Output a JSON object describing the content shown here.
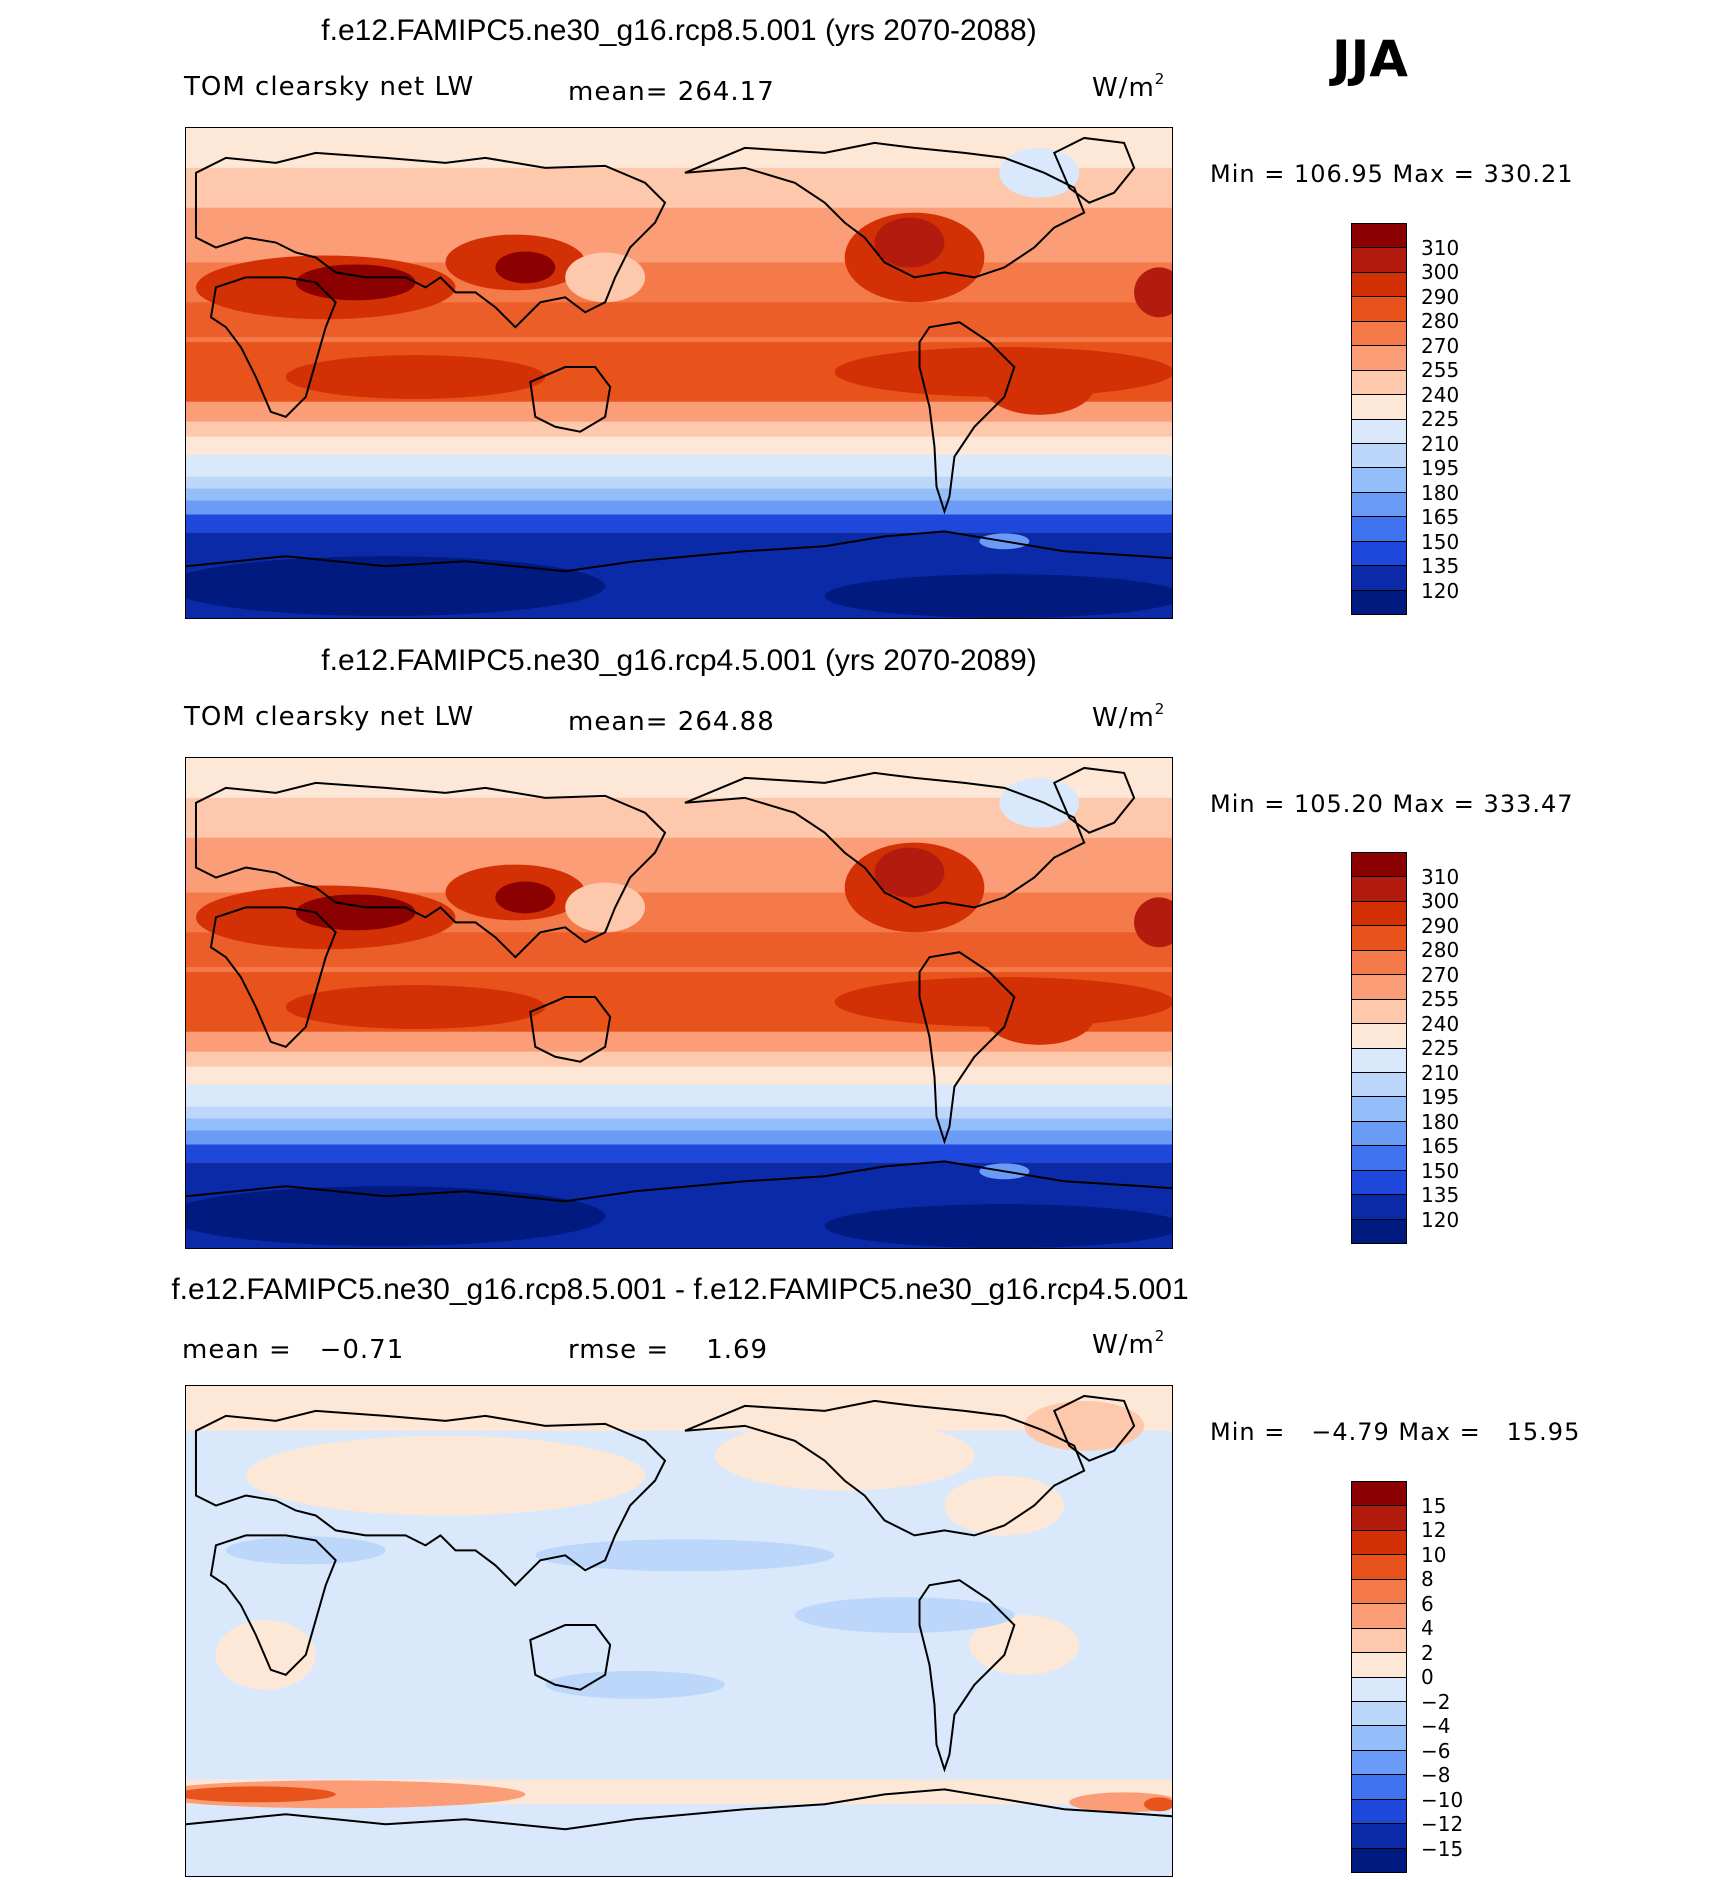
{
  "season": "JJA",
  "units_base": "W/m",
  "units_exp": "2",
  "panels": [
    {
      "title": "f.e12.FAMIPC5.ne30_g16.rcp8.5.001 (yrs 2070-2088)",
      "left_label": "TOM clearsky net LW",
      "stat_label": "mean= 264.17",
      "minmax": "Min = 106.95 Max = 330.21",
      "levels": [
        "310",
        "300",
        "290",
        "280",
        "270",
        "255",
        "240",
        "225",
        "210",
        "195",
        "180",
        "165",
        "150",
        "135",
        "120"
      ],
      "colors": [
        "#8b0000",
        "#b21b0e",
        "#d43006",
        "#e8521b",
        "#f57a4a",
        "#fb9d77",
        "#fdc8ac",
        "#fde8d8",
        "#d9e9fb",
        "#bdd7fb",
        "#93befa",
        "#6a9cf7",
        "#3f73f0",
        "#1e48dc",
        "#0b2aa8",
        "#001a80"
      ]
    },
    {
      "title": "f.e12.FAMIPC5.ne30_g16.rcp4.5.001 (yrs 2070-2089)",
      "left_label": "TOM clearsky net LW",
      "stat_label": "mean= 264.88",
      "minmax": "Min = 105.20 Max = 333.47",
      "levels": [
        "310",
        "300",
        "290",
        "280",
        "270",
        "255",
        "240",
        "225",
        "210",
        "195",
        "180",
        "165",
        "150",
        "135",
        "120"
      ],
      "colors": [
        "#8b0000",
        "#b21b0e",
        "#d43006",
        "#e8521b",
        "#f57a4a",
        "#fb9d77",
        "#fdc8ac",
        "#fde8d8",
        "#d9e9fb",
        "#bdd7fb",
        "#93befa",
        "#6a9cf7",
        "#3f73f0",
        "#1e48dc",
        "#0b2aa8",
        "#001a80"
      ]
    },
    {
      "title": "f.e12.FAMIPC5.ne30_g16.rcp8.5.001 - f.e12.FAMIPC5.ne30_g16.rcp4.5.001",
      "left_label": "mean =   −0.71",
      "stat_label": "rmse =    1.69",
      "minmax": "Min =   −4.79 Max =   15.95",
      "levels": [
        "15",
        "12",
        "10",
        "8",
        "6",
        "4",
        "2",
        "0",
        "−2",
        "−4",
        "−6",
        "−8",
        "−10",
        "−12",
        "−15"
      ],
      "colors": [
        "#8b0000",
        "#b21b0e",
        "#d43006",
        "#e8521b",
        "#f57a4a",
        "#fb9d77",
        "#fdc8ac",
        "#fde8d8",
        "#d9e9fb",
        "#bdd7fb",
        "#93befa",
        "#6a9cf7",
        "#3f73f0",
        "#1e48dc",
        "#0b2aa8",
        "#001a80"
      ]
    }
  ]
}
